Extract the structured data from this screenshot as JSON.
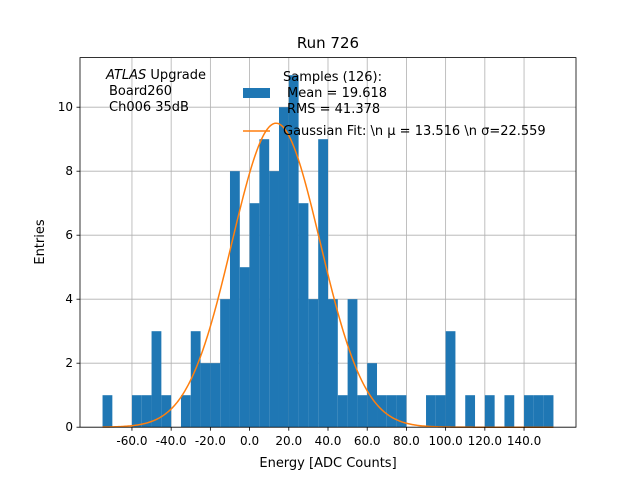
{
  "chart_data": {
    "type": "histogram",
    "title": "Run 726",
    "xlabel": "Energy [ADC Counts]",
    "ylabel": "Entries",
    "annotation_italic": "ATLAS",
    "annotation": [
      "Upgrade",
      "Board260",
      "Ch006 35dB"
    ],
    "bins": [
      -75,
      -70,
      -65,
      -60,
      -55,
      -50,
      -45,
      -40,
      -35,
      -30,
      -25,
      -20,
      -15,
      -10,
      -5,
      0,
      5,
      10,
      15,
      20,
      25,
      30,
      35,
      40,
      45,
      50,
      55,
      60,
      65,
      70,
      75,
      80,
      85,
      90,
      95,
      100,
      105,
      110,
      115,
      120,
      125,
      130,
      135,
      140,
      145,
      150,
      155
    ],
    "series": [
      {
        "name": [
          "Samples (126):",
          "Mean = 19.618",
          "RMS = 41.378"
        ],
        "color": "#1f77b4",
        "values": [
          1,
          0,
          0,
          1,
          1,
          3,
          1,
          0,
          1,
          3,
          2,
          2,
          4,
          8,
          5,
          7,
          9,
          8,
          10,
          11,
          7,
          4,
          9,
          4,
          1,
          4,
          1,
          2,
          1,
          1,
          1,
          0,
          0,
          1,
          1,
          3,
          0,
          1,
          0,
          1,
          0,
          1,
          0,
          1,
          1,
          1
        ]
      },
      {
        "name": "Gaussian Fit: \\n μ = 13.516 \\n σ=22.559",
        "color": "#ff7f0e",
        "fit": {
          "mu": 13.516,
          "sigma": 22.559,
          "amplitude": 9.5
        }
      }
    ],
    "xlim": [
      -86.5,
      166.5
    ],
    "ylim": [
      0,
      11.55
    ],
    "xticks": [
      {
        "value": -60,
        "label": "-60.0"
      },
      {
        "value": -40,
        "label": "-40.0"
      },
      {
        "value": -20,
        "label": "-20.0"
      },
      {
        "value": 0,
        "label": "0.0"
      },
      {
        "value": 20,
        "label": "20.0"
      },
      {
        "value": 40,
        "label": "40.0"
      },
      {
        "value": 60,
        "label": "60.0"
      },
      {
        "value": 80,
        "label": "80.0"
      },
      {
        "value": 100,
        "label": "100.0"
      },
      {
        "value": 120,
        "label": "120.0"
      },
      {
        "value": 140,
        "label": "140.0"
      }
    ],
    "yticks": [
      0,
      2,
      4,
      6,
      8,
      10
    ],
    "grid": true
  }
}
